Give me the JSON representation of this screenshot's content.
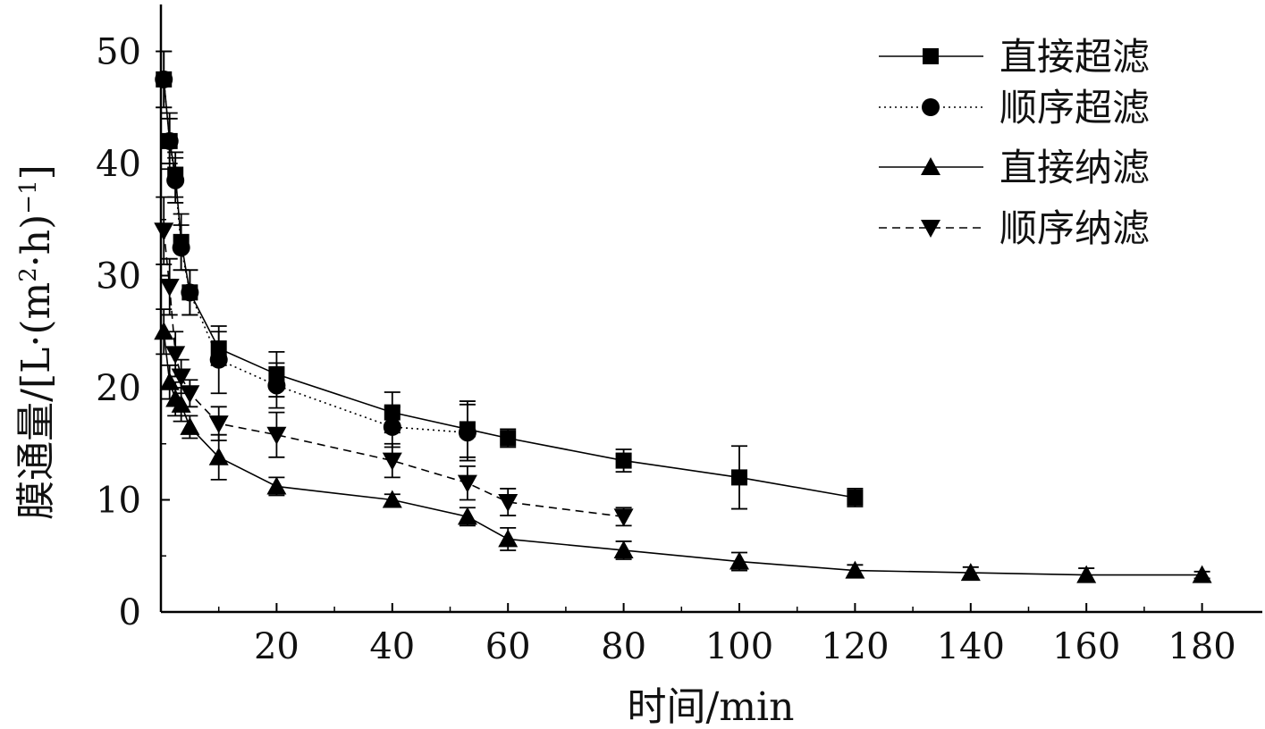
{
  "chart_data": {
    "type": "line",
    "xlabel": "时间/min",
    "ylabel_main": "膜通量/[L·(m",
    "ylabel_sup1": "2",
    "ylabel_mid": "·h)",
    "ylabel_sup2": "−1",
    "ylabel_end": "]",
    "xlim": [
      0,
      190
    ],
    "ylim": [
      0,
      54
    ],
    "x_ticks": [
      20,
      40,
      60,
      80,
      100,
      120,
      140,
      160,
      180
    ],
    "y_ticks": [
      0,
      10,
      20,
      30,
      40,
      50
    ],
    "grid": false,
    "legend_position": "top-right",
    "series": [
      {
        "name": "直接超滤",
        "marker": "square",
        "line_style": "solid",
        "x": [
          0.5,
          1.5,
          2.5,
          3.5,
          5,
          10,
          20,
          40,
          53,
          60,
          80,
          100,
          120
        ],
        "y": [
          47.5,
          42.0,
          39.0,
          33.0,
          28.5,
          23.5,
          21.2,
          17.8,
          16.3,
          15.5,
          13.5,
          12.0,
          10.2
        ],
        "err": [
          2.5,
          2.5,
          2.0,
          2.5,
          2.0,
          1.5,
          2.0,
          1.8,
          2.5,
          0.8,
          1.0,
          2.8,
          0.8
        ]
      },
      {
        "name": "顺序超滤",
        "marker": "circle",
        "line_style": "dotted",
        "x": [
          0.5,
          1.5,
          2.5,
          3.5,
          5,
          10,
          20,
          40,
          53
        ],
        "y": [
          47.5,
          42.0,
          38.5,
          32.5,
          28.5,
          22.5,
          20.2,
          16.5,
          16.0
        ],
        "err": [
          2.5,
          2.0,
          2.0,
          2.0,
          2.0,
          3.0,
          2.0,
          1.8,
          2.5
        ]
      },
      {
        "name": "直接纳滤",
        "marker": "triangle-up",
        "line_style": "solid",
        "x": [
          0.5,
          1.5,
          2.5,
          3.5,
          5,
          10,
          20,
          40,
          53,
          60,
          80,
          100,
          120,
          140,
          160,
          180
        ],
        "y": [
          25.0,
          20.5,
          19.0,
          18.5,
          16.5,
          13.8,
          11.2,
          10.0,
          8.5,
          6.5,
          5.5,
          4.5,
          3.7,
          3.5,
          3.3,
          3.3
        ],
        "err": [
          2.0,
          1.5,
          1.5,
          1.5,
          1.0,
          2.0,
          0.8,
          0.5,
          0.8,
          1.0,
          0.8,
          0.8,
          0.5,
          0.5,
          0.6,
          0.3
        ]
      },
      {
        "name": "顺序纳滤",
        "marker": "triangle-down",
        "line_style": "dashed",
        "x": [
          0.5,
          1.5,
          2.5,
          3.5,
          5,
          10,
          20,
          40,
          53,
          60,
          80
        ],
        "y": [
          34.0,
          29.0,
          23.0,
          21.0,
          19.5,
          16.8,
          15.8,
          13.5,
          11.5,
          9.8,
          8.5
        ],
        "err": [
          3.0,
          2.5,
          2.0,
          1.5,
          1.2,
          1.5,
          2.0,
          1.5,
          1.5,
          1.2,
          0.8
        ]
      }
    ]
  }
}
